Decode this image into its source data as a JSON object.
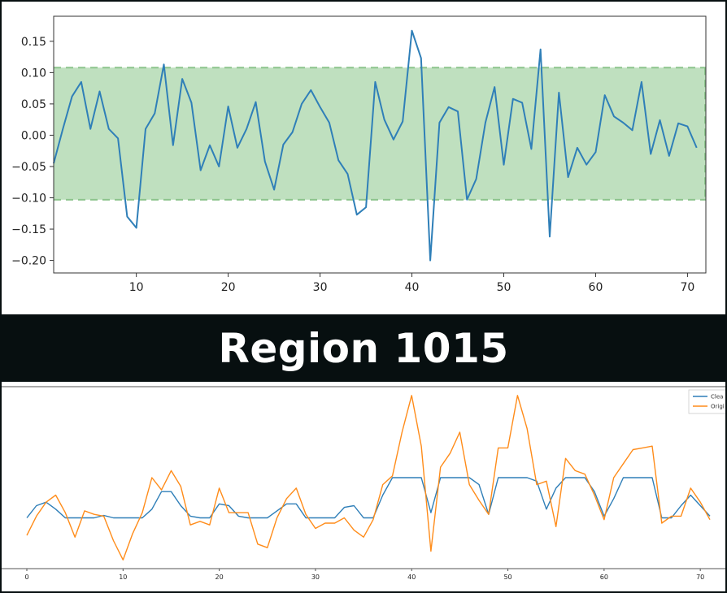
{
  "title": "Region 1015",
  "colors": {
    "blue": "#2f7fb8",
    "orange": "#ff8c1a",
    "band_fill": "#bfe0bf",
    "band_edge": "#8cc48c",
    "background": "#070f10"
  },
  "chart_data": [
    {
      "type": "line",
      "xlim": [
        1,
        72
      ],
      "ylim": [
        -0.22,
        0.19
      ],
      "xticks": [
        10,
        20,
        30,
        40,
        50,
        60,
        70
      ],
      "yticks": [
        0.15,
        0.1,
        0.05,
        0.0,
        -0.05,
        -0.1,
        -0.15,
        -0.2
      ],
      "ytick_labels": [
        "0.15",
        "0.10",
        "0.05",
        "0.00",
        "−0.05",
        "−0.10",
        "−0.15",
        "−0.20"
      ],
      "band": [
        -0.103,
        0.108
      ],
      "grid": false,
      "series": [
        {
          "x": [
            1,
            2,
            3,
            4,
            5,
            6,
            7,
            8,
            9,
            10,
            11,
            12,
            13,
            14,
            15,
            16,
            17,
            18,
            19,
            20,
            21,
            22,
            23,
            24,
            25,
            26,
            27,
            28,
            29,
            30,
            31,
            32,
            33,
            34,
            35,
            36,
            37,
            38,
            39,
            40,
            41,
            42,
            43,
            44,
            45,
            46,
            47,
            48,
            49,
            50,
            51,
            52,
            53,
            54,
            55,
            56,
            57,
            58,
            59,
            60,
            61,
            62,
            63,
            64,
            65,
            66,
            67,
            68,
            69,
            70,
            71
          ],
          "values": [
            -0.045,
            0.01,
            0.062,
            0.085,
            0.01,
            0.07,
            0.01,
            -0.005,
            -0.13,
            -0.148,
            0.01,
            0.035,
            0.113,
            -0.016,
            0.09,
            0.052,
            -0.056,
            -0.016,
            -0.05,
            0.046,
            -0.02,
            0.01,
            0.053,
            -0.042,
            -0.087,
            -0.015,
            0.005,
            0.05,
            0.072,
            0.045,
            0.02,
            -0.04,
            -0.062,
            -0.127,
            -0.115,
            0.085,
            0.025,
            -0.007,
            0.022,
            0.167,
            0.123,
            -0.2,
            0.02,
            0.045,
            0.038,
            -0.103,
            -0.07,
            0.02,
            0.077,
            -0.047,
            0.058,
            0.052,
            -0.022,
            0.137,
            -0.162,
            0.068,
            -0.067,
            -0.02,
            -0.047,
            -0.027,
            0.064,
            0.03,
            0.02,
            0.008,
            0.085,
            -0.03,
            0.024,
            -0.033,
            0.019,
            0.014,
            -0.02
          ]
        }
      ]
    },
    {
      "type": "line",
      "xlim": [
        -2,
        72
      ],
      "xticks": [
        0,
        10,
        20,
        30,
        40,
        50,
        60,
        70
      ],
      "legend": "top-right",
      "legend_entries": [
        "Clea",
        "Origi"
      ],
      "series": [
        {
          "name": "Clea",
          "x": [
            0,
            1,
            2,
            3,
            4,
            5,
            6,
            7,
            8,
            9,
            10,
            11,
            12,
            13,
            14,
            15,
            16,
            17,
            18,
            19,
            20,
            21,
            22,
            23,
            24,
            25,
            26,
            27,
            28,
            29,
            30,
            31,
            32,
            33,
            34,
            35,
            36,
            37,
            38,
            39,
            40,
            41,
            42,
            43,
            44,
            45,
            46,
            47,
            48,
            49,
            50,
            51,
            52,
            53,
            54,
            55,
            56,
            57,
            58,
            59,
            60,
            61,
            62,
            63,
            64,
            65,
            66,
            67,
            68,
            69,
            70,
            71
          ],
          "values": [
            -0.045,
            -0.01,
            0.0,
            -0.02,
            -0.045,
            -0.045,
            -0.045,
            -0.045,
            -0.038,
            -0.045,
            -0.045,
            -0.045,
            -0.045,
            -0.02,
            0.03,
            0.03,
            -0.01,
            -0.04,
            -0.045,
            -0.045,
            -0.005,
            -0.01,
            -0.04,
            -0.045,
            -0.045,
            -0.045,
            -0.025,
            -0.005,
            -0.005,
            -0.045,
            -0.045,
            -0.045,
            -0.045,
            -0.015,
            -0.01,
            -0.045,
            -0.045,
            0.02,
            0.07,
            0.07,
            0.07,
            0.07,
            -0.03,
            0.07,
            0.07,
            0.07,
            0.07,
            0.05,
            -0.035,
            0.07,
            0.07,
            0.07,
            0.07,
            0.06,
            -0.02,
            0.04,
            0.07,
            0.07,
            0.07,
            0.03,
            -0.04,
            0.01,
            0.07,
            0.07,
            0.07,
            0.07,
            -0.045,
            -0.045,
            -0.01,
            0.02,
            -0.01,
            -0.04
          ]
        },
        {
          "name": "Origi",
          "x": [
            0,
            1,
            2,
            3,
            4,
            5,
            6,
            7,
            8,
            9,
            10,
            11,
            12,
            13,
            14,
            15,
            16,
            17,
            18,
            19,
            20,
            21,
            22,
            23,
            24,
            25,
            26,
            27,
            28,
            29,
            30,
            31,
            32,
            33,
            34,
            35,
            36,
            37,
            38,
            39,
            40,
            41,
            42,
            43,
            44,
            45,
            46,
            47,
            48,
            49,
            50,
            51,
            52,
            53,
            54,
            55,
            56,
            57,
            58,
            59,
            60,
            61,
            62,
            63,
            64,
            65,
            66,
            67,
            68,
            69,
            70,
            71
          ],
          "values": [
            -0.095,
            -0.04,
            0.0,
            0.02,
            -0.03,
            -0.1,
            -0.025,
            -0.035,
            -0.04,
            -0.11,
            -0.165,
            -0.09,
            -0.03,
            0.07,
            0.035,
            0.09,
            0.045,
            -0.065,
            -0.055,
            -0.065,
            0.04,
            -0.03,
            -0.03,
            -0.03,
            -0.12,
            -0.13,
            -0.045,
            0.01,
            0.04,
            -0.035,
            -0.075,
            -0.06,
            -0.06,
            -0.045,
            -0.08,
            -0.1,
            -0.05,
            0.05,
            0.075,
            0.2,
            0.305,
            0.16,
            -0.14,
            0.1,
            0.14,
            0.2,
            0.05,
            0.005,
            -0.035,
            0.155,
            0.155,
            0.305,
            0.21,
            0.05,
            0.06,
            -0.07,
            0.125,
            0.09,
            0.08,
            0.02,
            -0.05,
            0.07,
            0.11,
            0.15,
            0.155,
            0.16,
            -0.06,
            -0.04,
            -0.04,
            0.04,
            -0.0,
            -0.05
          ]
        }
      ]
    }
  ]
}
